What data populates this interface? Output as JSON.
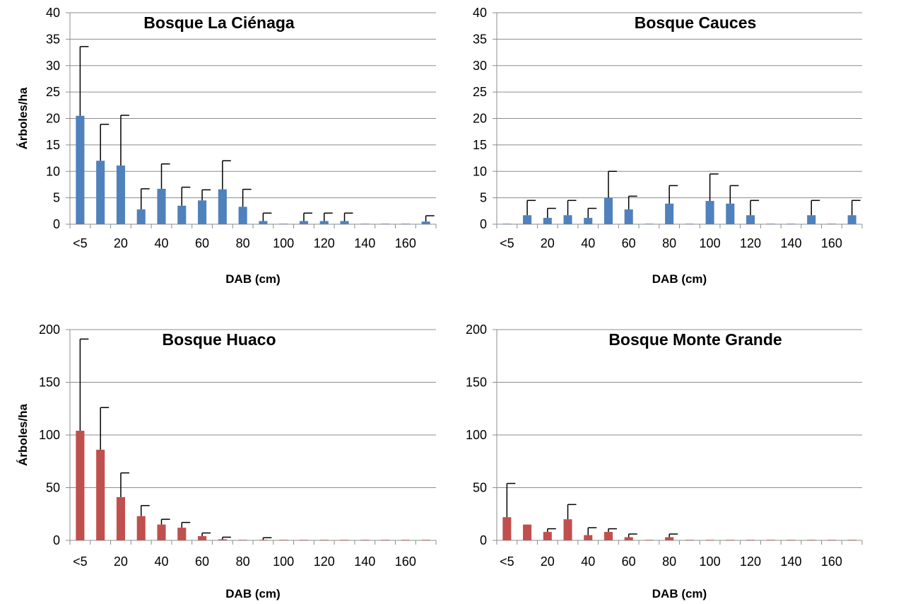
{
  "chart_data": [
    {
      "type": "bar",
      "title": "Bosque La Ciénaga",
      "xlabel": "DAB (cm)",
      "ylabel": "Árboles/ha",
      "ylim": [
        0,
        40
      ],
      "yticks": [
        0,
        5,
        10,
        15,
        20,
        25,
        30,
        35,
        40
      ],
      "xtick_labels": [
        "<5",
        "20",
        "40",
        "60",
        "80",
        "100",
        "120",
        "140",
        "160"
      ],
      "categories": [
        "<5",
        "10",
        "20",
        "30",
        "40",
        "50",
        "60",
        "70",
        "80",
        "90",
        "100",
        "110",
        "120",
        "130",
        "140",
        "150",
        "160",
        "170"
      ],
      "values": [
        20.5,
        12.0,
        11.1,
        2.8,
        6.7,
        3.5,
        4.5,
        6.6,
        3.3,
        0.6,
        0.1,
        0.6,
        0.6,
        0.6,
        0.1,
        0.1,
        0.1,
        0.5
      ],
      "errors": [
        13.1,
        6.9,
        9.5,
        3.9,
        4.7,
        3.5,
        2.0,
        5.4,
        3.3,
        1.5,
        0,
        1.5,
        1.5,
        1.5,
        0,
        0,
        0,
        1.1
      ],
      "color": "#4F81BD",
      "grid": true
    },
    {
      "type": "bar",
      "title": "Bosque Cauces",
      "xlabel": "DAB (cm)",
      "ylabel": "",
      "ylim": [
        0,
        40
      ],
      "yticks": [
        0,
        5,
        10,
        15,
        20,
        25,
        30,
        35,
        40
      ],
      "xtick_labels": [
        "<5",
        "20",
        "40",
        "60",
        "80",
        "100",
        "120",
        "140",
        "160"
      ],
      "categories": [
        "<5",
        "10",
        "20",
        "30",
        "40",
        "50",
        "60",
        "70",
        "80",
        "90",
        "100",
        "110",
        "120",
        "130",
        "140",
        "150",
        "160",
        "170"
      ],
      "values": [
        0.1,
        1.7,
        1.2,
        1.7,
        1.2,
        5.0,
        2.8,
        0.1,
        3.9,
        0.1,
        4.4,
        3.9,
        1.7,
        0.1,
        0.1,
        1.7,
        0.1,
        1.7
      ],
      "errors": [
        0,
        2.8,
        1.8,
        2.8,
        1.8,
        5.0,
        2.5,
        0,
        3.4,
        0,
        5.1,
        3.4,
        2.8,
        0,
        0,
        2.8,
        0,
        2.8
      ],
      "color": "#4F81BD",
      "grid": true
    },
    {
      "type": "bar",
      "title": "Bosque Huaco",
      "xlabel": "DAB (cm)",
      "ylabel": "Árboles/ha",
      "ylim": [
        0,
        200
      ],
      "yticks": [
        0,
        50,
        100,
        150,
        200
      ],
      "xtick_labels": [
        "<5",
        "20",
        "40",
        "60",
        "80",
        "100",
        "120",
        "140",
        "160"
      ],
      "categories": [
        "<5",
        "10",
        "20",
        "30",
        "40",
        "50",
        "60",
        "70",
        "80",
        "90",
        "100",
        "110",
        "120",
        "130",
        "140",
        "150",
        "160",
        "170"
      ],
      "values": [
        104,
        86,
        41,
        23,
        15,
        12,
        4,
        1,
        0.5,
        0.5,
        0.5,
        0.5,
        0.5,
        0.5,
        0.5,
        0.5,
        0.5,
        0.5
      ],
      "errors": [
        87,
        40,
        23,
        10,
        5,
        5,
        3,
        2,
        0,
        2,
        0,
        0,
        0,
        0,
        0,
        0,
        0,
        0
      ],
      "color": "#C0504D",
      "grid": true
    },
    {
      "type": "bar",
      "title": "Bosque Monte Grande",
      "xlabel": "DAB (cm)",
      "ylabel": "",
      "ylim": [
        0,
        200
      ],
      "yticks": [
        0,
        50,
        100,
        150,
        200
      ],
      "xtick_labels": [
        "<5",
        "20",
        "40",
        "60",
        "80",
        "100",
        "120",
        "140",
        "160"
      ],
      "categories": [
        "<5",
        "10",
        "20",
        "30",
        "40",
        "50",
        "60",
        "70",
        "80",
        "90",
        "100",
        "110",
        "120",
        "130",
        "140",
        "150",
        "160",
        "170"
      ],
      "values": [
        22,
        15,
        8,
        20,
        5,
        8,
        3,
        0.5,
        3,
        0.5,
        0.5,
        0.5,
        0.5,
        0.5,
        0.5,
        0.5,
        0.5,
        0.5
      ],
      "errors": [
        32,
        0,
        3,
        14,
        7,
        3,
        3,
        0,
        3,
        0,
        0,
        0,
        0,
        0,
        0,
        0,
        0,
        0
      ],
      "color": "#C0504D",
      "grid": true
    }
  ]
}
